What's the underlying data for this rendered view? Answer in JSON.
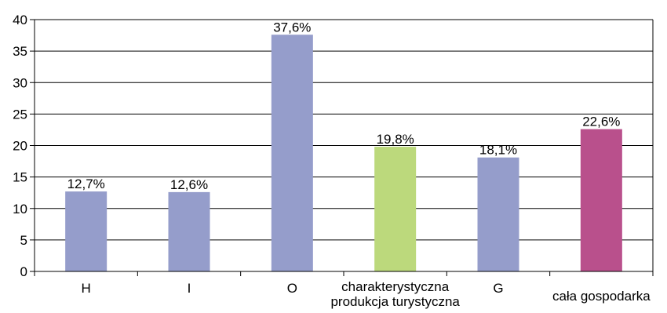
{
  "chart_data": {
    "type": "bar",
    "title": "",
    "xlabel": "",
    "ylabel": "",
    "ylim": [
      0,
      40
    ],
    "yticks": [
      0,
      5,
      10,
      15,
      20,
      25,
      30,
      35,
      40
    ],
    "grid": true,
    "legend": "none",
    "categories": [
      [
        "H"
      ],
      [
        "I"
      ],
      [
        "O"
      ],
      [
        "charakterystyczna",
        "produkcja turystyczna"
      ],
      [
        "G"
      ],
      [
        "cała gospodarka"
      ]
    ],
    "values": [
      12.7,
      12.6,
      37.6,
      19.8,
      18.1,
      22.6
    ],
    "data_labels": [
      "12,7%",
      "12,6%",
      "37,6%",
      "19,8%",
      "18,1%",
      "22,6%"
    ],
    "colors": [
      "#959dcb",
      "#959dcb",
      "#959dcb",
      "#bcd97c",
      "#959dcb",
      "#b9508c"
    ]
  }
}
